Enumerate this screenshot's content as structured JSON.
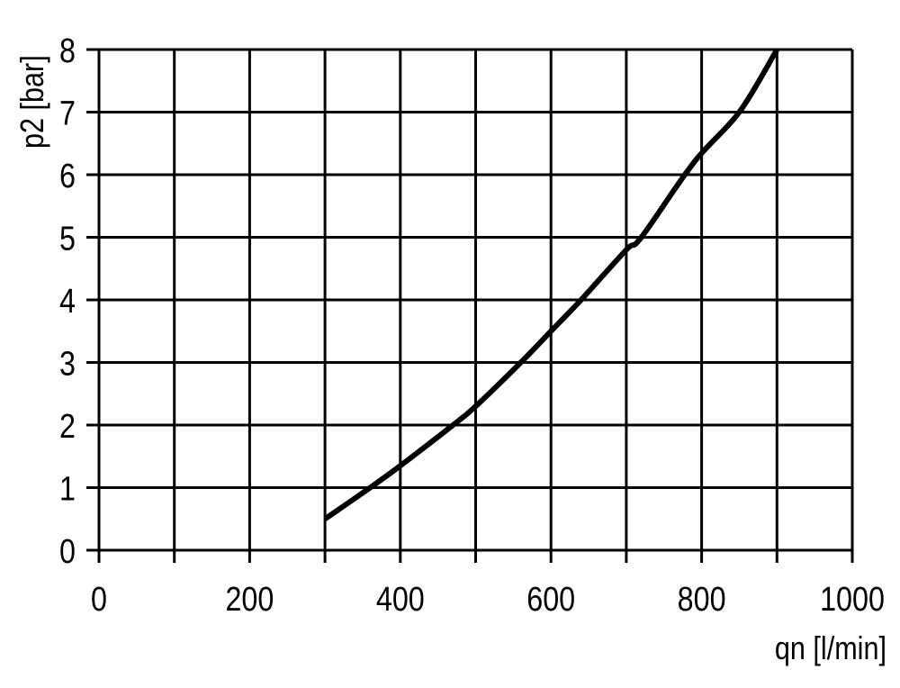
{
  "chart_data": {
    "type": "line",
    "title": "",
    "xlabel": "qn [l/min]",
    "ylabel": "p2 [bar]",
    "xlim": [
      0,
      1000
    ],
    "ylim": [
      0,
      8
    ],
    "grid": true,
    "x_ticks": [
      0,
      100,
      200,
      300,
      400,
      500,
      600,
      700,
      800,
      900,
      1000
    ],
    "x_tick_labels": [
      "0",
      "200",
      "400",
      "600",
      "800",
      "1000"
    ],
    "x_tick_label_values": [
      0,
      200,
      400,
      600,
      800,
      1000
    ],
    "y_ticks": [
      0,
      1,
      2,
      3,
      4,
      5,
      6,
      7,
      8
    ],
    "y_tick_labels": [
      "0",
      "1",
      "2",
      "3",
      "4",
      "5",
      "6",
      "7",
      "8"
    ],
    "series": [
      {
        "color": "#000000",
        "x": [
          300,
          360,
          400,
          470,
          500,
          560,
          600,
          640,
          700,
          720,
          790,
          850,
          900
        ],
        "y": [
          0.5,
          1.0,
          1.35,
          2.0,
          2.3,
          3.0,
          3.5,
          4.0,
          4.8,
          5.0,
          6.2,
          7.0,
          8.0
        ]
      }
    ]
  }
}
